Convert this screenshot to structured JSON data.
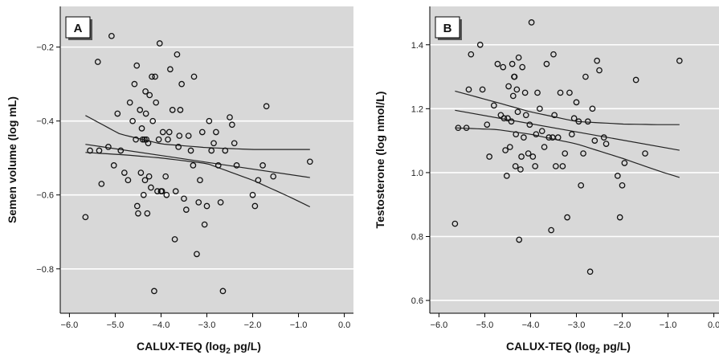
{
  "chart_data": [
    {
      "type": "scatter",
      "panel_label": "A",
      "xlabel_main": "CALUX-TEQ (log",
      "xlabel_sub": "2",
      "xlabel_tail": " pg/L)",
      "ylabel": "Semen volume (log mL)",
      "xlim": [
        -6.2,
        0.2
      ],
      "ylim": [
        -0.92,
        -0.09
      ],
      "xticks": [
        -6,
        -5,
        -4,
        -3,
        -2,
        -1,
        0
      ],
      "xtick_labels": [
        "−6.0",
        "−5.0",
        "−4.0",
        "−3.0",
        "−2.0",
        "−1.0",
        "0.0"
      ],
      "yticks": [
        -0.8,
        -0.6,
        -0.4,
        -0.2
      ],
      "ytick_labels": [
        "−0.8",
        "−0.6",
        "−0.4",
        "−0.2"
      ],
      "grid": true,
      "points": [
        [
          -5.65,
          -0.66
        ],
        [
          -5.55,
          -0.48
        ],
        [
          -5.38,
          -0.24
        ],
        [
          -5.35,
          -0.48
        ],
        [
          -5.3,
          -0.57
        ],
        [
          -5.15,
          -0.47
        ],
        [
          -5.08,
          -0.17
        ],
        [
          -5.03,
          -0.52
        ],
        [
          -4.95,
          -0.38
        ],
        [
          -4.88,
          -0.48
        ],
        [
          -4.8,
          -0.54
        ],
        [
          -4.72,
          -0.56
        ],
        [
          -4.68,
          -0.35
        ],
        [
          -4.62,
          -0.4
        ],
        [
          -4.58,
          -0.3
        ],
        [
          -4.55,
          -0.45
        ],
        [
          -4.53,
          -0.25
        ],
        [
          -4.52,
          -0.63
        ],
        [
          -4.5,
          -0.65
        ],
        [
          -4.46,
          -0.37
        ],
        [
          -4.44,
          -0.54
        ],
        [
          -4.42,
          -0.42
        ],
        [
          -4.4,
          -0.45
        ],
        [
          -4.38,
          -0.6
        ],
        [
          -4.36,
          -0.45
        ],
        [
          -4.35,
          -0.56
        ],
        [
          -4.34,
          -0.32
        ],
        [
          -4.33,
          -0.38
        ],
        [
          -4.32,
          -0.45
        ],
        [
          -4.3,
          -0.65
        ],
        [
          -4.28,
          -0.46
        ],
        [
          -4.26,
          -0.55
        ],
        [
          -4.25,
          -0.33
        ],
        [
          -4.22,
          -0.58
        ],
        [
          -4.2,
          -0.28
        ],
        [
          -4.18,
          -0.4
        ],
        [
          -4.15,
          -0.86
        ],
        [
          -4.13,
          -0.28
        ],
        [
          -4.11,
          -0.35
        ],
        [
          -4.08,
          -0.59
        ],
        [
          -4.05,
          -0.45
        ],
        [
          -4.03,
          -0.19
        ],
        [
          -4.0,
          -0.59
        ],
        [
          -3.98,
          -0.59
        ],
        [
          -3.96,
          -0.43
        ],
        [
          -3.9,
          -0.55
        ],
        [
          -3.88,
          -0.6
        ],
        [
          -3.85,
          -0.45
        ],
        [
          -3.82,
          -0.43
        ],
        [
          -3.8,
          -0.26
        ],
        [
          -3.75,
          -0.37
        ],
        [
          -3.7,
          -0.72
        ],
        [
          -3.68,
          -0.59
        ],
        [
          -3.65,
          -0.22
        ],
        [
          -3.62,
          -0.47
        ],
        [
          -3.6,
          -0.44
        ],
        [
          -3.58,
          -0.37
        ],
        [
          -3.55,
          -0.3
        ],
        [
          -3.5,
          -0.61
        ],
        [
          -3.45,
          -0.64
        ],
        [
          -3.4,
          -0.44
        ],
        [
          -3.35,
          -0.48
        ],
        [
          -3.3,
          -0.52
        ],
        [
          -3.28,
          -0.28
        ],
        [
          -3.22,
          -0.76
        ],
        [
          -3.18,
          -0.62
        ],
        [
          -3.15,
          -0.56
        ],
        [
          -3.1,
          -0.43
        ],
        [
          -3.05,
          -0.68
        ],
        [
          -3.0,
          -0.63
        ],
        [
          -2.95,
          -0.4
        ],
        [
          -2.9,
          -0.48
        ],
        [
          -2.85,
          -0.46
        ],
        [
          -2.8,
          -0.43
        ],
        [
          -2.75,
          -0.52
        ],
        [
          -2.7,
          -0.62
        ],
        [
          -2.65,
          -0.86
        ],
        [
          -2.6,
          -0.48
        ],
        [
          -2.5,
          -0.39
        ],
        [
          -2.45,
          -0.41
        ],
        [
          -2.4,
          -0.46
        ],
        [
          -2.35,
          -0.52
        ],
        [
          -2.0,
          -0.6
        ],
        [
          -1.95,
          -0.63
        ],
        [
          -1.88,
          -0.56
        ],
        [
          -1.78,
          -0.52
        ],
        [
          -1.7,
          -0.36
        ],
        [
          -1.55,
          -0.55
        ],
        [
          -0.75,
          -0.51
        ]
      ],
      "fit": {
        "x_range": [
          -5.65,
          -0.75
        ],
        "y_at_start": -0.463,
        "y_at_end": -0.553
      },
      "ci_lower": {
        "x": [
          -5.65,
          -4.75,
          -4.0,
          -3.0,
          -2.0,
          -1.2,
          -0.75
        ],
        "y": [
          -0.485,
          -0.492,
          -0.5,
          -0.515,
          -0.56,
          -0.605,
          -0.632
        ]
      },
      "ci_upper": {
        "x": [
          -5.65,
          -4.9,
          -4.0,
          -3.0,
          -2.0,
          -1.2,
          -0.75
        ],
        "y": [
          -0.385,
          -0.435,
          -0.462,
          -0.472,
          -0.477,
          -0.477,
          -0.477
        ]
      }
    },
    {
      "type": "scatter",
      "panel_label": "B",
      "xlabel_main": "CALUX-TEQ (log",
      "xlabel_sub": "2",
      "xlabel_tail": " pg/L)",
      "ylabel": "Testosterone (log nmol/L)",
      "xlim": [
        -6.2,
        0.2
      ],
      "ylim": [
        0.56,
        1.52
      ],
      "xticks": [
        -6,
        -5,
        -4,
        -3,
        -2,
        -1,
        0
      ],
      "xtick_labels": [
        "−6.0",
        "−5.0",
        "−4.0",
        "−3.0",
        "−2.0",
        "−1.0",
        "0.0"
      ],
      "yticks": [
        0.6,
        0.8,
        1.0,
        1.2,
        1.4
      ],
      "ytick_labels": [
        "0.6",
        "0.8",
        "1.0",
        "1.2",
        "1.4"
      ],
      "grid": true,
      "points": [
        [
          -5.65,
          0.84
        ],
        [
          -5.58,
          1.14
        ],
        [
          -5.4,
          1.14
        ],
        [
          -5.35,
          1.26
        ],
        [
          -5.3,
          1.37
        ],
        [
          -5.1,
          1.4
        ],
        [
          -5.05,
          1.26
        ],
        [
          -4.95,
          1.15
        ],
        [
          -4.9,
          1.05
        ],
        [
          -4.8,
          1.21
        ],
        [
          -4.72,
          1.34
        ],
        [
          -4.65,
          1.18
        ],
        [
          -4.6,
          1.33
        ],
        [
          -4.58,
          1.17
        ],
        [
          -4.55,
          1.07
        ],
        [
          -4.52,
          0.99
        ],
        [
          -4.5,
          1.17
        ],
        [
          -4.48,
          1.27
        ],
        [
          -4.45,
          1.08
        ],
        [
          -4.42,
          1.16
        ],
        [
          -4.4,
          1.34
        ],
        [
          -4.38,
          1.24
        ],
        [
          -4.36,
          1.3
        ],
        [
          -4.35,
          1.3
        ],
        [
          -4.33,
          1.02
        ],
        [
          -4.32,
          1.12
        ],
        [
          -4.3,
          1.26
        ],
        [
          -4.28,
          1.19
        ],
        [
          -4.26,
          1.36
        ],
        [
          -4.25,
          0.79
        ],
        [
          -4.22,
          1.01
        ],
        [
          -4.2,
          1.05
        ],
        [
          -4.18,
          1.33
        ],
        [
          -4.15,
          1.11
        ],
        [
          -4.12,
          1.25
        ],
        [
          -4.1,
          1.18
        ],
        [
          -4.05,
          1.06
        ],
        [
          -4.02,
          1.15
        ],
        [
          -3.98,
          1.47
        ],
        [
          -3.95,
          1.05
        ],
        [
          -3.9,
          1.02
        ],
        [
          -3.88,
          1.12
        ],
        [
          -3.85,
          1.25
        ],
        [
          -3.8,
          1.2
        ],
        [
          -3.75,
          1.13
        ],
        [
          -3.7,
          1.08
        ],
        [
          -3.65,
          1.34
        ],
        [
          -3.6,
          1.11
        ],
        [
          -3.55,
          0.82
        ],
        [
          -3.52,
          1.11
        ],
        [
          -3.5,
          1.37
        ],
        [
          -3.48,
          1.18
        ],
        [
          -3.45,
          1.02
        ],
        [
          -3.4,
          1.11
        ],
        [
          -3.35,
          1.25
        ],
        [
          -3.3,
          1.02
        ],
        [
          -3.25,
          1.06
        ],
        [
          -3.2,
          0.86
        ],
        [
          -3.15,
          1.25
        ],
        [
          -3.1,
          1.12
        ],
        [
          -3.05,
          1.17
        ],
        [
          -3.0,
          1.22
        ],
        [
          -2.95,
          1.16
        ],
        [
          -2.9,
          0.96
        ],
        [
          -2.85,
          1.06
        ],
        [
          -2.8,
          1.3
        ],
        [
          -2.75,
          1.16
        ],
        [
          -2.7,
          0.69
        ],
        [
          -2.65,
          1.2
        ],
        [
          -2.6,
          1.1
        ],
        [
          -2.55,
          1.35
        ],
        [
          -2.5,
          1.32
        ],
        [
          -2.4,
          1.11
        ],
        [
          -2.35,
          1.09
        ],
        [
          -2.1,
          0.99
        ],
        [
          -2.05,
          0.86
        ],
        [
          -2.0,
          0.96
        ],
        [
          -1.95,
          1.03
        ],
        [
          -1.7,
          1.29
        ],
        [
          -1.5,
          1.06
        ],
        [
          -0.75,
          1.35
        ]
      ],
      "fit": {
        "x_range": [
          -5.65,
          -0.75
        ],
        "y_at_start": 1.195,
        "y_at_end": 1.07
      },
      "ci_lower": {
        "x": [
          -5.65,
          -4.75,
          -4.0,
          -3.0,
          -2.0,
          -1.2,
          -0.75
        ],
        "y": [
          1.14,
          1.135,
          1.12,
          1.09,
          1.045,
          1.005,
          0.985
        ]
      },
      "ci_upper": {
        "x": [
          -5.65,
          -4.75,
          -4.0,
          -3.0,
          -2.0,
          -1.2,
          -0.75
        ],
        "y": [
          1.255,
          1.22,
          1.19,
          1.16,
          1.152,
          1.15,
          1.15
        ]
      }
    }
  ]
}
